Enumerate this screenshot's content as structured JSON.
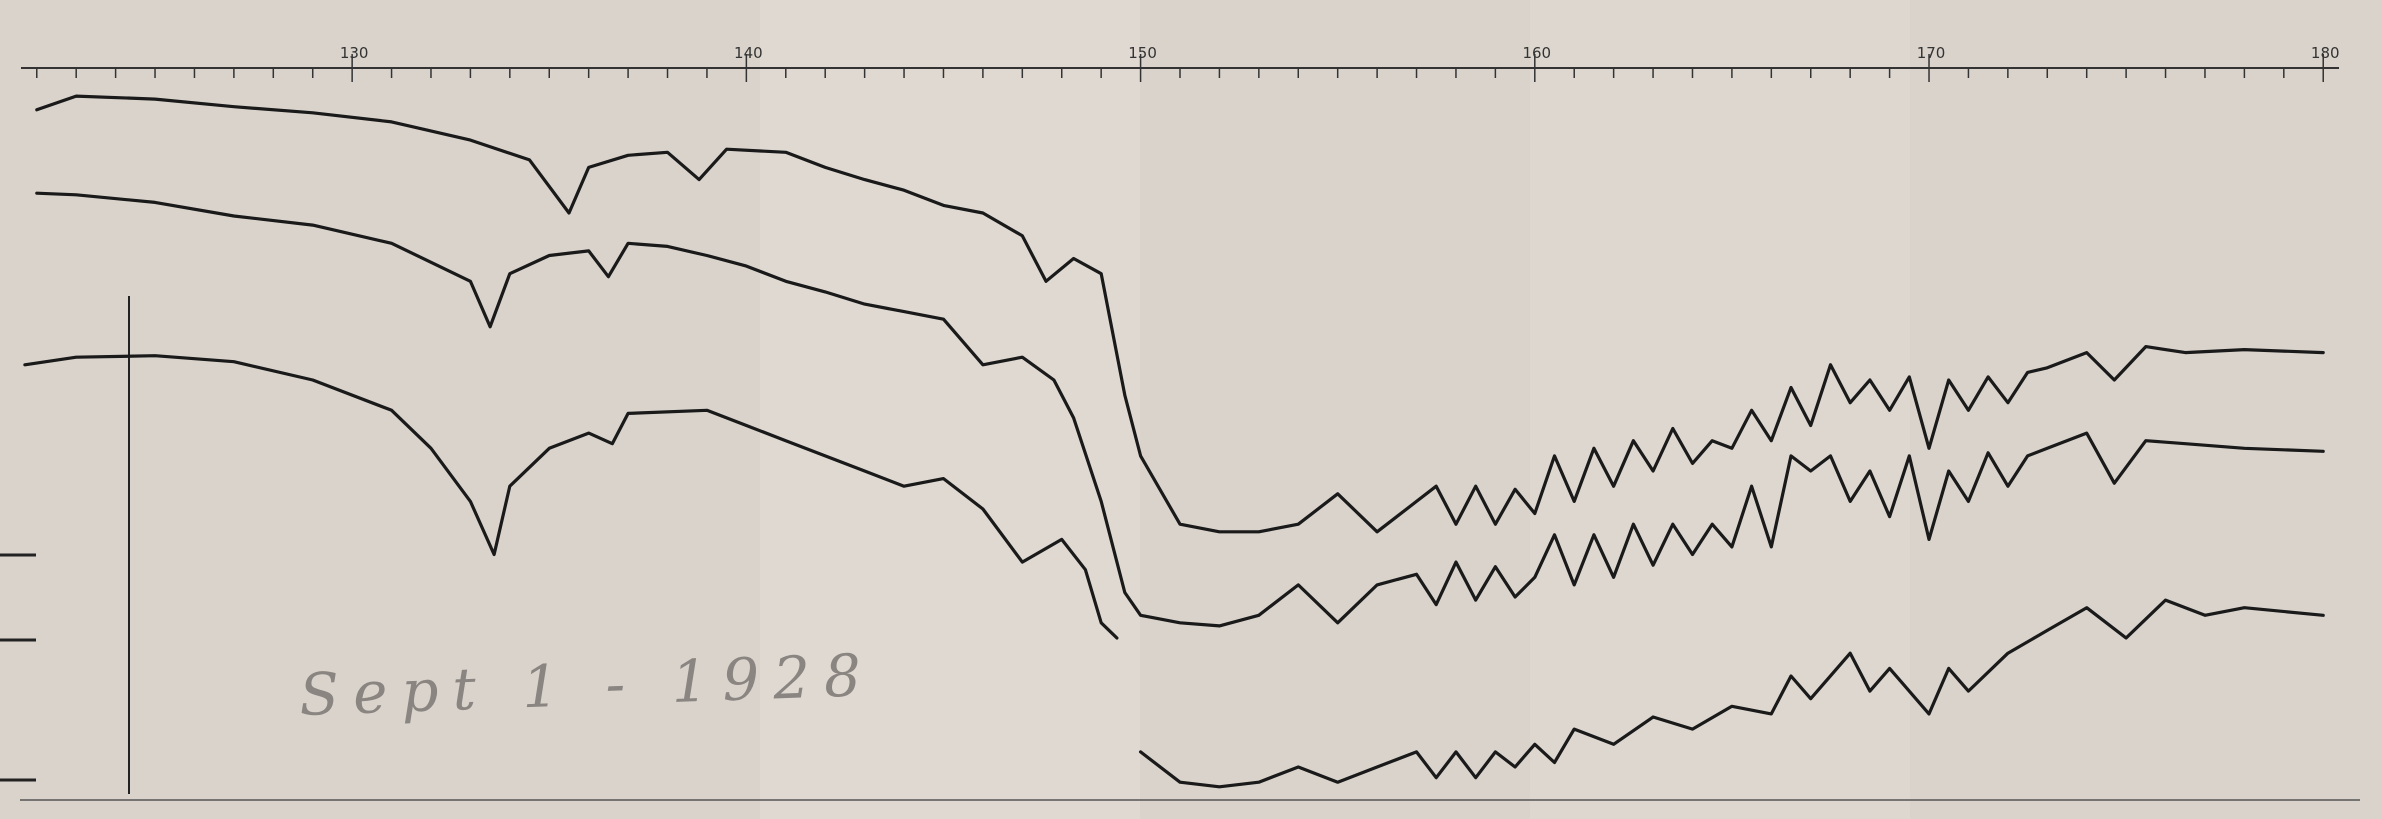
{
  "chart_data": {
    "type": "line",
    "xlim": [
      121.6,
      180.4
    ],
    "xticks": [
      130,
      140,
      150,
      160,
      170,
      180
    ],
    "xminor_ticks": [
      122,
      123,
      124,
      125,
      126,
      127,
      128,
      129,
      131,
      132,
      133,
      134,
      135,
      136,
      137,
      138,
      139,
      141,
      142,
      143,
      144,
      145,
      146,
      147,
      148,
      149,
      151,
      152,
      153,
      154,
      155,
      156,
      157,
      158,
      159,
      161,
      162,
      163,
      164,
      165,
      166,
      167,
      168,
      169,
      171,
      172,
      173,
      174,
      175,
      176,
      177,
      178,
      179
    ],
    "ylim": [
      0,
      100
    ],
    "annotation": "Sept 1 - 1928",
    "series": [
      {
        "color": "#1a1a1a",
        "x": [
          122,
          123,
          125,
          127,
          129,
          131,
          133,
          134.5,
          135.5,
          136,
          137,
          138,
          138.8,
          139.5,
          141,
          142,
          143,
          144,
          145,
          146,
          147,
          147.6,
          148.3,
          149,
          149.6,
          150,
          151,
          152,
          153,
          154,
          155,
          156,
          157,
          157.5,
          158,
          158.5,
          159,
          159.5,
          160,
          160.5,
          161,
          161.5,
          162,
          162.5,
          163,
          163.5,
          164,
          164.5,
          165,
          165.5,
          166,
          166.5,
          167,
          167.5,
          168,
          168.5,
          169,
          169.5,
          170,
          170.5,
          171,
          171.5,
          172,
          172.5,
          173,
          174,
          174.7,
          175.5,
          176.5,
          178,
          180
        ],
        "values": [
          91.6,
          93.4,
          93,
          92,
          91.2,
          90,
          87.6,
          85,
          78,
          84,
          85.6,
          86,
          82.4,
          86.4,
          86,
          84,
          82.4,
          81,
          79,
          78,
          75,
          69,
          72,
          70,
          54,
          46,
          37,
          36,
          36,
          37,
          41,
          36,
          40,
          42,
          37,
          42,
          37,
          41.6,
          38.4,
          46,
          40,
          47,
          42,
          48,
          44,
          49.6,
          45,
          48,
          47,
          52,
          48,
          55,
          50,
          58,
          53,
          56,
          52,
          56.4,
          47,
          56,
          52,
          56.4,
          53,
          57,
          57.6,
          59.6,
          56,
          60.4,
          59.6,
          60,
          59.6
        ]
      },
      {
        "color": "#1a1a1a",
        "x": [
          122,
          123,
          125,
          127,
          129,
          131,
          133,
          133.5,
          134,
          135,
          136,
          136.5,
          137,
          138,
          139,
          140,
          141,
          142,
          143,
          144,
          145,
          146,
          147,
          147.8,
          148.3,
          149,
          149.6,
          150,
          151,
          152,
          153,
          154,
          155,
          156,
          157,
          157.5,
          158,
          158.5,
          159,
          159.5,
          160,
          160.5,
          161,
          161.5,
          162,
          162.5,
          163,
          163.5,
          164,
          164.5,
          165,
          165.5,
          166,
          166.5,
          167,
          167.5,
          168,
          168.5,
          169,
          169.5,
          170,
          170.5,
          171,
          171.5,
          172,
          172.5,
          173,
          174,
          174.7,
          175.5,
          176.5,
          178,
          180
        ],
        "values": [
          80.6,
          80.4,
          79.4,
          77.6,
          76.4,
          74,
          69,
          63,
          70,
          72.4,
          73,
          69.6,
          74,
          73.6,
          72.4,
          71,
          69,
          67.6,
          66,
          65,
          64,
          58,
          59,
          56,
          51,
          40,
          28,
          25,
          24,
          23.6,
          25,
          29,
          24,
          29,
          30.4,
          26.4,
          32,
          27,
          31.4,
          27.4,
          30,
          35.6,
          29,
          35.6,
          30,
          37,
          31.6,
          37,
          33,
          37,
          34,
          42,
          34,
          46,
          44,
          46,
          40,
          44,
          38,
          46,
          35,
          44,
          40,
          46.4,
          42,
          46,
          47,
          49,
          42.4,
          48,
          47.6,
          47,
          46.6
        ]
      },
      {
        "color": "#1a1a1a",
        "x": [
          121.7,
          123,
          125,
          127,
          129,
          131,
          132,
          133,
          133.6,
          134,
          135,
          136,
          136.6,
          137,
          139,
          140,
          141,
          142,
          143,
          144,
          145,
          146,
          147,
          148,
          148.6,
          149,
          149.4,
          149.7,
          150,
          151,
          152,
          153,
          154,
          155,
          156,
          157,
          157.5,
          158,
          158.5,
          159,
          159.5,
          160,
          160.5,
          161,
          162,
          163,
          164,
          165,
          166,
          166.5,
          167,
          168,
          168.5,
          169,
          170,
          170.5,
          171,
          172,
          173,
          174,
          175,
          176,
          177,
          178,
          180
        ],
        "values": [
          58,
          59,
          59.2,
          58.4,
          56,
          52,
          47,
          40,
          33,
          42,
          47,
          49,
          47.6,
          51.6,
          52,
          50,
          48,
          46,
          44,
          42,
          43,
          39,
          32,
          35,
          31,
          24,
          22,
          null,
          7,
          3,
          2.4,
          3,
          5,
          3,
          5,
          7,
          3.6,
          7,
          3.6,
          7,
          5,
          8,
          5.6,
          10,
          8,
          11.6,
          10,
          13,
          12,
          17,
          14,
          20,
          15,
          18,
          12,
          18,
          15,
          20,
          23,
          26,
          22,
          27,
          25,
          26,
          25
        ]
      }
    ]
  }
}
